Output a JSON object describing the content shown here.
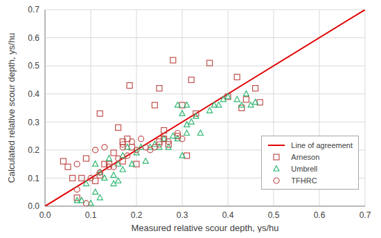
{
  "chart_data": {
    "type": "scatter",
    "x_label": "Measured relative scour depth, ys/hu",
    "y_label": "Calculated relative scour depth, ys/hu",
    "xlim": [
      0,
      0.7
    ],
    "ylim": [
      0,
      0.7
    ],
    "xticks": [
      {
        "value": 0,
        "label": "0.0"
      },
      {
        "value": 0.1,
        "label": "0.1"
      },
      {
        "value": 0.2,
        "label": "0.2"
      },
      {
        "value": 0.3,
        "label": "0.3"
      },
      {
        "value": 0.4,
        "label": "0.4"
      },
      {
        "value": 0.5,
        "label": "0.5"
      },
      {
        "value": 0.6,
        "label": "0.6"
      },
      {
        "value": 0.7,
        "label": "0.7"
      }
    ],
    "yticks": [
      {
        "value": 0,
        "label": "0.0"
      },
      {
        "value": 0.1,
        "label": "0.1"
      },
      {
        "value": 0.2,
        "label": "0.2"
      },
      {
        "value": 0.3,
        "label": "0.3"
      },
      {
        "value": 0.4,
        "label": "0.4"
      },
      {
        "value": 0.5,
        "label": "0.5"
      },
      {
        "value": 0.6,
        "label": "0.6"
      },
      {
        "value": 0.7,
        "label": "0.7"
      }
    ],
    "grid": true,
    "legend": "lower right",
    "series": [
      {
        "name": "Line of agreement",
        "type": "line",
        "color": "#e00000",
        "line_style": "solid",
        "x": [
          0,
          0.7
        ],
        "values": [
          0,
          0.7
        ]
      },
      {
        "name": "Arneson",
        "type": "scatter",
        "color": "#c0504d",
        "marker": "square",
        "x": [
          0.04,
          0.05,
          0.06,
          0.07,
          0.08,
          0.09,
          0.11,
          0.12,
          0.12,
          0.13,
          0.14,
          0.15,
          0.16,
          0.17,
          0.17,
          0.18,
          0.185,
          0.19,
          0.2,
          0.24,
          0.25,
          0.25,
          0.26,
          0.26,
          0.27,
          0.28,
          0.29,
          0.3,
          0.31,
          0.32,
          0.33,
          0.36,
          0.4,
          0.42,
          0.43,
          0.44,
          0.46,
          0.47
        ],
        "values": [
          0.16,
          0.14,
          0.1,
          0.03,
          0.1,
          0.17,
          0.09,
          0.33,
          0.11,
          0.15,
          0.15,
          0.19,
          0.28,
          0.23,
          0.16,
          0.24,
          0.43,
          0.21,
          0.15,
          0.36,
          0.42,
          0.23,
          0.27,
          0.24,
          0.22,
          0.52,
          0.25,
          0.36,
          0.18,
          0.45,
          0.33,
          0.51,
          0.39,
          0.46,
          0.35,
          0.38,
          0.42,
          0.37
        ]
      },
      {
        "name": "Umbrell",
        "type": "scatter",
        "color": "#2eb872",
        "marker": "triangle",
        "x": [
          0.07,
          0.08,
          0.09,
          0.1,
          0.11,
          0.11,
          0.12,
          0.12,
          0.13,
          0.14,
          0.15,
          0.15,
          0.16,
          0.16,
          0.17,
          0.17,
          0.18,
          0.19,
          0.2,
          0.21,
          0.22,
          0.23,
          0.24,
          0.25,
          0.26,
          0.27,
          0.28,
          0.29,
          0.29,
          0.3,
          0.3,
          0.31,
          0.31,
          0.31,
          0.32,
          0.33,
          0.34,
          0.36,
          0.37,
          0.38,
          0.39,
          0.4,
          0.42,
          0.43,
          0.44,
          0.45,
          0.46
        ],
        "values": [
          0.02,
          0.02,
          0.08,
          0.01,
          0.05,
          0.15,
          0.03,
          0.12,
          0.1,
          0.17,
          0.11,
          0.08,
          0.15,
          0.09,
          0.13,
          0.18,
          0.21,
          0.15,
          0.19,
          0.21,
          0.16,
          0.21,
          0.22,
          0.21,
          0.24,
          0.21,
          0.25,
          0.36,
          0.24,
          0.18,
          0.33,
          0.26,
          0.29,
          0.36,
          0.3,
          0.32,
          0.26,
          0.34,
          0.36,
          0.36,
          0.38,
          0.39,
          0.38,
          0.36,
          0.4,
          0.36,
          0.37
        ]
      },
      {
        "name": "TFHRC",
        "type": "scatter",
        "color": "#c0504d",
        "marker": "circle",
        "x": [
          0.07,
          0.07,
          0.09,
          0.1,
          0.11,
          0.12,
          0.13,
          0.14,
          0.15,
          0.16,
          0.17,
          0.17,
          0.18,
          0.19,
          0.2,
          0.21,
          0.22,
          0.23,
          0.24,
          0.25,
          0.26,
          0.27,
          0.29,
          0.3
        ],
        "values": [
          0.06,
          0.15,
          0.01,
          0.1,
          0.2,
          0.12,
          0.21,
          0.14,
          0.14,
          0.17,
          0.21,
          0.22,
          0.18,
          0.23,
          0.2,
          0.24,
          0.21,
          0.2,
          0.21,
          0.22,
          0.24,
          0.23,
          0.26,
          0.24
        ]
      }
    ]
  }
}
